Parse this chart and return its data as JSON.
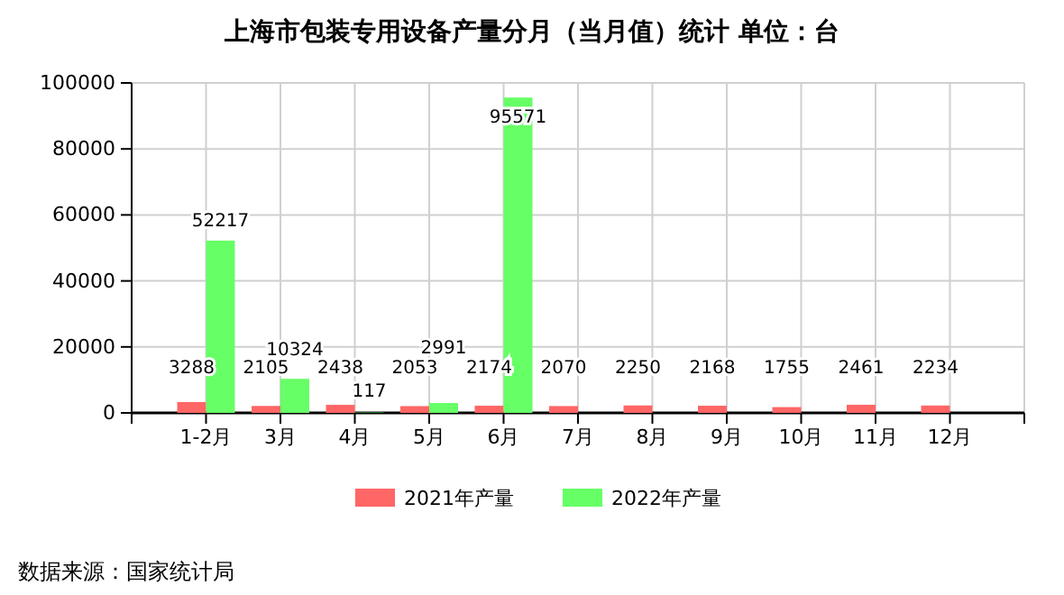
{
  "chart_data": {
    "type": "bar",
    "title": "上海市包装专用设备产量分月（当月值）统计  单位：台",
    "categories": [
      "1-2月",
      "3月",
      "4月",
      "5月",
      "6月",
      "7月",
      "8月",
      "9月",
      "10月",
      "11月",
      "12月"
    ],
    "series": [
      {
        "name": "2021年产量",
        "color": "#ff6666",
        "values": [
          3288,
          2105,
          2438,
          2053,
          2174,
          2070,
          2250,
          2168,
          1755,
          2461,
          2234
        ]
      },
      {
        "name": "2022年产量",
        "color": "#66ff66",
        "values": [
          52217,
          10324,
          117,
          2991,
          95571,
          null,
          null,
          null,
          null,
          null,
          null
        ]
      }
    ],
    "ylim": [
      0,
      100000
    ],
    "yticks": [
      0,
      20000,
      40000,
      60000,
      80000,
      100000
    ],
    "grid": true,
    "legend": "bottom",
    "data_labels": true,
    "annotations": [
      "数据来源：国家统计局"
    ]
  }
}
